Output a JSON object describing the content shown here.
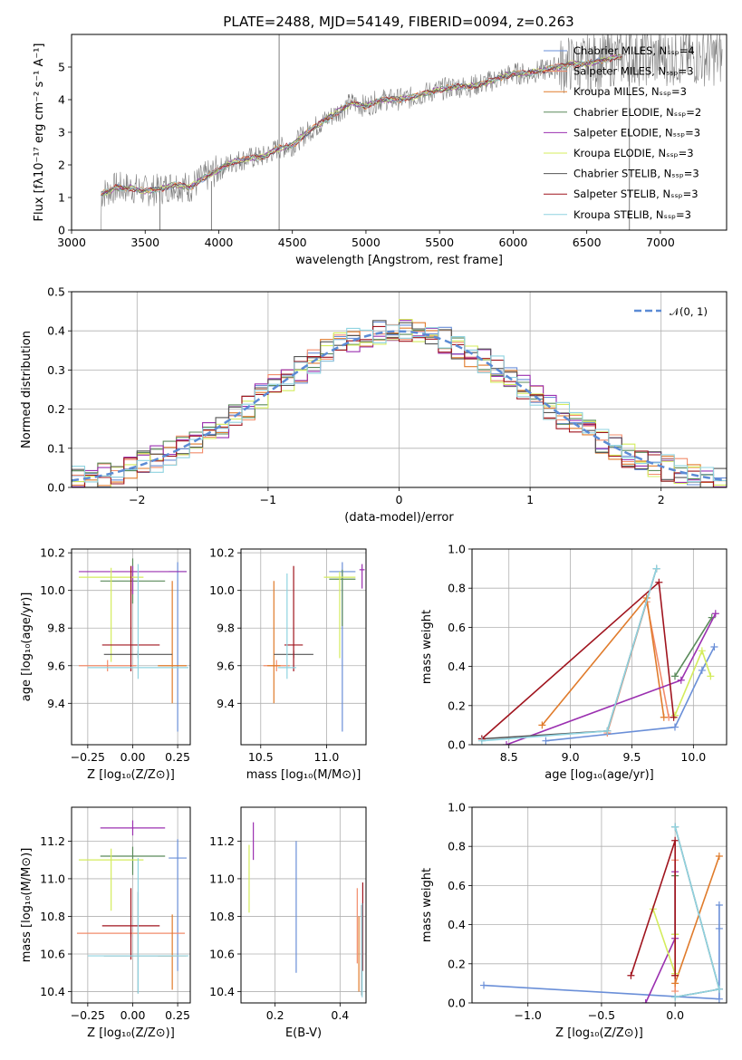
{
  "chart_data": [
    {
      "id": "spectrum",
      "type": "line",
      "title": "PLATE=2488, MJD=54149, FIBERID=0094, z=0.263",
      "xlabel": "wavelength [Angstrom, rest frame]",
      "ylabel": "Flux [fλ10⁻¹⁷ erg cm⁻² s⁻¹ A⁻¹]",
      "xlim": [
        3000,
        7450
      ],
      "ylim": [
        0,
        6
      ],
      "xticks": [
        3000,
        3500,
        4000,
        4500,
        5000,
        5500,
        6000,
        6500,
        7000
      ],
      "yticks": [
        0,
        1,
        2,
        3,
        4,
        5
      ],
      "grid": false,
      "legend_position": "top-right",
      "legend": [
        {
          "label": "Chabrier MILES, Nₛₛₚ=4",
          "color": "#6a8fd8"
        },
        {
          "label": "Salpeter MILES, Nₛₛₚ=3",
          "color": "#f28c6b"
        },
        {
          "label": "Kroupa MILES, Nₛₛₚ=3",
          "color": "#e07b2b"
        },
        {
          "label": "Chabrier ELODIE, Nₛₛₚ=2",
          "color": "#5a8a5a"
        },
        {
          "label": "Salpeter ELODIE, Nₛₛₚ=3",
          "color": "#9b30b0"
        },
        {
          "label": "Kroupa ELODIE, Nₛₛₚ=3",
          "color": "#d4ec5c"
        },
        {
          "label": "Chabrier STELIB, Nₛₛₚ=3",
          "color": "#555555"
        },
        {
          "label": "Salpeter STELIB, Nₛₛₚ=3",
          "color": "#a0141e"
        },
        {
          "label": "Kroupa STELIB, Nₛₛₚ=3",
          "color": "#8fd3e0"
        }
      ],
      "data_color": "#808080",
      "model_points": [
        [
          3200,
          1.1
        ],
        [
          3300,
          1.3
        ],
        [
          3400,
          1.3
        ],
        [
          3500,
          1.2
        ],
        [
          3600,
          1.25
        ],
        [
          3700,
          1.4
        ],
        [
          3800,
          1.3
        ],
        [
          3900,
          1.6
        ],
        [
          4000,
          1.85
        ],
        [
          4100,
          2.1
        ],
        [
          4200,
          2.2
        ],
        [
          4300,
          2.25
        ],
        [
          4400,
          2.5
        ],
        [
          4500,
          2.6
        ],
        [
          4600,
          3.0
        ],
        [
          4700,
          3.3
        ],
        [
          4800,
          3.6
        ],
        [
          4900,
          3.9
        ],
        [
          5000,
          3.8
        ],
        [
          5100,
          4.0
        ],
        [
          5200,
          4.0
        ],
        [
          5300,
          4.05
        ],
        [
          5400,
          4.2
        ],
        [
          5500,
          4.3
        ],
        [
          5600,
          4.4
        ],
        [
          5700,
          4.4
        ],
        [
          5800,
          4.5
        ],
        [
          5900,
          4.65
        ],
        [
          6000,
          4.8
        ],
        [
          6100,
          4.8
        ],
        [
          6200,
          4.9
        ],
        [
          6300,
          5.0
        ],
        [
          6400,
          5.1
        ],
        [
          6500,
          5.1
        ],
        [
          6600,
          5.2
        ],
        [
          6700,
          5.3
        ]
      ]
    },
    {
      "id": "residuals",
      "type": "line",
      "xlabel": "(data-model)/error",
      "ylabel": "Normed distribution",
      "xlim": [
        -2.5,
        2.5
      ],
      "ylim": [
        0,
        0.5
      ],
      "xticks": [
        -2,
        -1,
        0,
        1,
        2
      ],
      "yticks": [
        0.0,
        0.1,
        0.2,
        0.3,
        0.4,
        0.5
      ],
      "grid": true,
      "legend_position": "top-right",
      "legend": [
        {
          "label": "𝒩(0, 1)",
          "color": "#5b8bd5",
          "style": "dashed"
        }
      ],
      "series_colors": [
        "#6a8fd8",
        "#f28c6b",
        "#e07b2b",
        "#5a8a5a",
        "#9b30b0",
        "#d4ec5c",
        "#555555",
        "#a0141e",
        "#8fd3e0"
      ]
    },
    {
      "id": "age-vs-z",
      "type": "scatter",
      "xlabel": "Z [log₁₀(Z/Z⊙)]",
      "ylabel": "age  [log₁₀(age/yr)]",
      "xlim": [
        -0.34,
        0.32
      ],
      "ylim": [
        9.18,
        10.22
      ],
      "xticks": [
        -0.25,
        0.0,
        0.25
      ],
      "xticklabels": [
        "−0.25",
        "0.00",
        "0.25"
      ],
      "yticks": [
        9.4,
        9.6,
        9.8,
        10.0,
        10.2
      ],
      "grid": true,
      "errorbars": [
        {
          "x": 0.25,
          "y": 10.1,
          "xerr": 0.05,
          "yerr": [
            0.85,
            0.05
          ],
          "color": "#6a8fd8"
        },
        {
          "x": -0.14,
          "y": 9.6,
          "xerr": 0.16,
          "yerr": 0.03,
          "color": "#f28c6b"
        },
        {
          "x": 0.22,
          "y": 9.6,
          "xerr": 0.08,
          "yerr": [
            0.2,
            0.45
          ],
          "color": "#e07b2b"
        },
        {
          "x": 0.0,
          "y": 10.05,
          "xerr": 0.18,
          "yerr": 0.12,
          "color": "#5a8a5a"
        },
        {
          "x": 0.0,
          "y": 10.1,
          "xerr": 0.3,
          "yerr": [
            0.12,
            0.03
          ],
          "color": "#9b30b0"
        },
        {
          "x": -0.12,
          "y": 10.07,
          "xerr": 0.18,
          "yerr": [
            0.45,
            0.05
          ],
          "color": "#d4ec5c"
        },
        {
          "x": 0.03,
          "y": 9.66,
          "xerr": 0.19,
          "yerr": 0.02,
          "color": "#555555"
        },
        {
          "x": -0.01,
          "y": 9.71,
          "xerr": 0.16,
          "yerr": [
            0.14,
            0.42
          ],
          "color": "#a0141e"
        },
        {
          "x": 0.03,
          "y": 9.59,
          "xerr": 0.28,
          "yerr": [
            0.06,
            0.55
          ],
          "color": "#8fd3e0"
        }
      ]
    },
    {
      "id": "age-vs-mass",
      "type": "scatter",
      "xlabel": "mass [log₁₀(M/M⊙)]",
      "xlim": [
        10.35,
        11.3
      ],
      "ylim": [
        9.18,
        10.22
      ],
      "xticks": [
        10.5,
        11.0
      ],
      "xticklabels": [
        "10.5",
        "11.0"
      ],
      "yticks": [
        9.4,
        9.6,
        9.8,
        10.0,
        10.2
      ],
      "grid": true,
      "errorbars": [
        {
          "x": 11.12,
          "y": 10.1,
          "xerr": 0.1,
          "yerr": [
            0.85,
            0.05
          ],
          "color": "#6a8fd8"
        },
        {
          "x": 10.62,
          "y": 9.6,
          "xerr": 0.1,
          "yerr": 0.03,
          "color": "#f28c6b"
        },
        {
          "x": 10.6,
          "y": 9.6,
          "xerr": 0.05,
          "yerr": [
            0.2,
            0.45
          ],
          "color": "#e07b2b"
        },
        {
          "x": 11.12,
          "y": 10.06,
          "xerr": 0.1,
          "yerr": [
            0.25,
            0.05
          ],
          "color": "#5a8a5a"
        },
        {
          "x": 11.27,
          "y": 10.11,
          "xerr": 0.02,
          "yerr": [
            0.1,
            0.03
          ],
          "color": "#9b30b0"
        },
        {
          "x": 11.1,
          "y": 10.07,
          "xerr": 0.12,
          "yerr": [
            0.43,
            0.03
          ],
          "color": "#d4ec5c"
        },
        {
          "x": 10.75,
          "y": 9.66,
          "xerr": 0.15,
          "yerr": 0.02,
          "color": "#555555"
        },
        {
          "x": 10.75,
          "y": 9.71,
          "xerr": 0.07,
          "yerr": [
            0.14,
            0.42
          ],
          "color": "#a0141e"
        },
        {
          "x": 10.7,
          "y": 9.59,
          "xerr": 0.07,
          "yerr": [
            0.06,
            0.5
          ],
          "color": "#8fd3e0"
        }
      ]
    },
    {
      "id": "weight-vs-age",
      "type": "line",
      "xlabel": "age  [log₁₀(age/yr)]",
      "ylabel": "mass weight",
      "xlim": [
        8.2,
        10.27
      ],
      "ylim": [
        0,
        1
      ],
      "xticks": [
        8.5,
        9.0,
        9.5,
        10.0
      ],
      "xticklabels": [
        "8.5",
        "9.0",
        "9.5",
        "10.0"
      ],
      "yticks": [
        0.0,
        0.2,
        0.4,
        0.6,
        0.8,
        1.0
      ],
      "grid": true,
      "series": [
        {
          "name": "Chabrier MILES",
          "color": "#6a8fd8",
          "points": [
            [
              8.8,
              0.02
            ],
            [
              9.85,
              0.09
            ],
            [
              10.07,
              0.38
            ],
            [
              10.17,
              0.5
            ]
          ]
        },
        {
          "name": "Salpeter MILES",
          "color": "#f28c6b",
          "points": [
            [
              9.3,
              0.06
            ],
            [
              9.62,
              0.73
            ],
            [
              9.8,
              0.14
            ]
          ]
        },
        {
          "name": "Kroupa MILES",
          "color": "#e07b2b",
          "points": [
            [
              8.77,
              0.1
            ],
            [
              9.62,
              0.75
            ],
            [
              9.76,
              0.14
            ]
          ]
        },
        {
          "name": "Chabrier ELODIE",
          "color": "#5a8a5a",
          "points": [
            [
              9.85,
              0.35
            ],
            [
              10.15,
              0.65
            ]
          ]
        },
        {
          "name": "Salpeter ELODIE",
          "color": "#9b30b0",
          "points": [
            [
              8.48,
              0
            ],
            [
              9.9,
              0.33
            ],
            [
              10.18,
              0.67
            ]
          ]
        },
        {
          "name": "Kroupa ELODIE",
          "color": "#d4ec5c",
          "points": [
            [
              9.85,
              0.15
            ],
            [
              10.07,
              0.48
            ],
            [
              10.14,
              0.35
            ]
          ]
        },
        {
          "name": "Chabrier STELIB",
          "color": "#555555",
          "points": [
            [
              8.28,
              0.03
            ],
            [
              9.3,
              0.07
            ],
            [
              9.7,
              0.9
            ]
          ]
        },
        {
          "name": "Salpeter STELIB",
          "color": "#a0141e",
          "points": [
            [
              8.28,
              0.03
            ],
            [
              9.72,
              0.83
            ],
            [
              9.84,
              0.14
            ]
          ]
        },
        {
          "name": "Kroupa STELIB",
          "color": "#8fd3e0",
          "points": [
            [
              8.28,
              0.02
            ],
            [
              9.3,
              0.07
            ],
            [
              9.7,
              0.9
            ]
          ]
        }
      ]
    },
    {
      "id": "mass-vs-z",
      "type": "scatter",
      "xlabel": "Z [log₁₀(Z/Z⊙)]",
      "ylabel": "mass [log₁₀(M/M⊙)]",
      "xlim": [
        -0.34,
        0.32
      ],
      "ylim": [
        10.34,
        11.38
      ],
      "xticks": [
        -0.25,
        0.0,
        0.25
      ],
      "xticklabels": [
        "−0.25",
        "0.00",
        "0.25"
      ],
      "yticks": [
        10.4,
        10.6,
        10.8,
        11.0,
        11.2
      ],
      "grid": true,
      "errorbars": [
        {
          "x": 0.25,
          "y": 11.11,
          "xerr": 0.05,
          "yerr": [
            0.6,
            0.1
          ],
          "color": "#6a8fd8"
        },
        {
          "x": -0.01,
          "y": 10.71,
          "xerr": 0.3,
          "yerr": 0.02,
          "color": "#f28c6b"
        },
        {
          "x": 0.22,
          "y": 10.59,
          "xerr": 0.08,
          "yerr": [
            0.18,
            0.22
          ],
          "color": "#e07b2b"
        },
        {
          "x": 0.0,
          "y": 11.12,
          "xerr": 0.18,
          "yerr": [
            0.1,
            0.05
          ],
          "color": "#5a8a5a"
        },
        {
          "x": 0.0,
          "y": 11.27,
          "xerr": 0.18,
          "yerr": [
            0.04,
            0.04
          ],
          "color": "#9b30b0"
        },
        {
          "x": -0.12,
          "y": 11.1,
          "xerr": 0.18,
          "yerr": [
            0.27,
            0.06
          ],
          "color": "#d4ec5c"
        },
        {
          "x": 0.03,
          "y": 10.59,
          "xerr": 0.19,
          "yerr": [
            0.2,
            0.34
          ],
          "color": "#555555"
        },
        {
          "x": -0.01,
          "y": 10.75,
          "xerr": 0.16,
          "yerr": [
            0.18,
            0.2
          ],
          "color": "#a0141e"
        },
        {
          "x": 0.03,
          "y": 10.59,
          "xerr": 0.28,
          "yerr": [
            0.2,
            0.52
          ],
          "color": "#8fd3e0"
        }
      ]
    },
    {
      "id": "mass-vs-ebv",
      "type": "scatter",
      "xlabel": "E(B-V)",
      "xlim": [
        0.095,
        0.48
      ],
      "ylim": [
        10.34,
        11.38
      ],
      "xticks": [
        0.2,
        0.4
      ],
      "xticklabels": [
        "0.2",
        "0.4"
      ],
      "yticks": [
        10.4,
        10.6,
        10.8,
        11.0,
        11.2
      ],
      "grid": true,
      "errorbars": [
        {
          "x": 0.265,
          "y": 10.85,
          "xerr": 0,
          "yerr": [
            0.35,
            0.35
          ],
          "color": "#6a8fd8"
        },
        {
          "x": 0.453,
          "y": 10.7,
          "xerr": 0,
          "yerr": [
            0.15,
            0.25
          ],
          "color": "#f28c6b"
        },
        {
          "x": 0.458,
          "y": 10.6,
          "xerr": 0,
          "yerr": [
            0.2,
            0.2
          ],
          "color": "#e07b2b"
        },
        {
          "x": 0.12,
          "y": 11.0,
          "xerr": 0,
          "yerr": [
            0.18,
            0.18
          ],
          "color": "#d4ec5c"
        },
        {
          "x": 0.133,
          "y": 11.2,
          "xerr": 0,
          "yerr": [
            0.1,
            0.1
          ],
          "color": "#9b30b0"
        },
        {
          "x": 0.467,
          "y": 10.62,
          "xerr": 0,
          "yerr": [
            0.24,
            0.24
          ],
          "color": "#555555"
        },
        {
          "x": 0.47,
          "y": 10.75,
          "xerr": 0,
          "yerr": [
            0.24,
            0.23
          ],
          "color": "#a0141e"
        },
        {
          "x": 0.468,
          "y": 10.62,
          "xerr": 0,
          "yerr": [
            0.25,
            0.25
          ],
          "color": "#8fd3e0"
        }
      ]
    },
    {
      "id": "weight-vs-z",
      "type": "line",
      "xlabel": "Z [log₁₀(Z/Z⊙)]",
      "ylabel": "mass weight",
      "xlim": [
        -1.38,
        0.35
      ],
      "ylim": [
        0,
        1
      ],
      "xticks": [
        -1.0,
        -0.5,
        0.0
      ],
      "xticklabels": [
        "−1.0",
        "−0.5",
        "0.0"
      ],
      "yticks": [
        0.0,
        0.2,
        0.4,
        0.6,
        0.8,
        1.0
      ],
      "grid": true,
      "series": [
        {
          "name": "Chabrier MILES",
          "color": "#6a8fd8",
          "points": [
            [
              -1.3,
              0.09
            ],
            [
              0.3,
              0.02
            ],
            [
              0.3,
              0.38
            ],
            [
              0.3,
              0.5
            ]
          ]
        },
        {
          "name": "Salpeter MILES",
          "color": "#f28c6b",
          "points": [
            [
              0.0,
              0.06
            ],
            [
              0.0,
              0.73
            ],
            [
              0.0,
              0.14
            ]
          ]
        },
        {
          "name": "Kroupa MILES",
          "color": "#e07b2b",
          "points": [
            [
              0.0,
              0.1
            ],
            [
              0.3,
              0.75
            ]
          ]
        },
        {
          "name": "Chabrier ELODIE",
          "color": "#5a8a5a",
          "points": [
            [
              0.0,
              0.35
            ],
            [
              0.0,
              0.65
            ]
          ]
        },
        {
          "name": "Salpeter ELODIE",
          "color": "#9b30b0",
          "points": [
            [
              -0.2,
              0
            ],
            [
              0.0,
              0.33
            ],
            [
              0.0,
              0.67
            ]
          ]
        },
        {
          "name": "Kroupa ELODIE",
          "color": "#d4ec5c",
          "points": [
            [
              -0.15,
              0.48
            ],
            [
              0.0,
              0.15
            ],
            [
              0.0,
              0.35
            ]
          ]
        },
        {
          "name": "Chabrier STELIB",
          "color": "#555555",
          "points": [
            [
              0.0,
              0.03
            ],
            [
              0.3,
              0.07
            ],
            [
              0.0,
              0.9
            ]
          ]
        },
        {
          "name": "Salpeter STELIB",
          "color": "#a0141e",
          "points": [
            [
              -0.3,
              0.14
            ],
            [
              0.0,
              0.83
            ],
            [
              0.0,
              0.14
            ]
          ]
        },
        {
          "name": "Kroupa STELIB",
          "color": "#8fd3e0",
          "points": [
            [
              0.0,
              0.03
            ],
            [
              0.3,
              0.07
            ],
            [
              0.0,
              0.9
            ]
          ]
        }
      ]
    }
  ]
}
